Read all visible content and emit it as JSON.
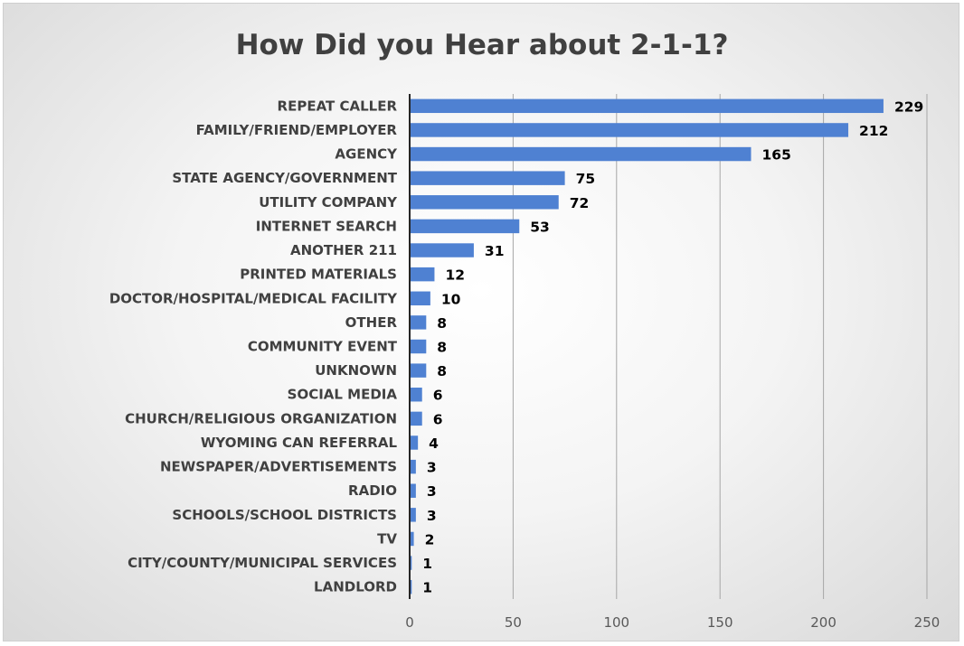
{
  "chart_data": {
    "type": "bar",
    "orientation": "horizontal",
    "title": "How Did you Hear about 2-1-1?",
    "xlabel": "",
    "ylabel": "",
    "categories": [
      "REPEAT CALLER",
      "FAMILY/FRIEND/EMPLOYER",
      "AGENCY",
      "STATE AGENCY/GOVERNMENT",
      "UTILITY COMPANY",
      "INTERNET SEARCH",
      "ANOTHER 211",
      "PRINTED MATERIALS",
      "DOCTOR/HOSPITAL/MEDICAL FACILITY",
      "OTHER",
      "COMMUNITY EVENT",
      "UNKNOWN",
      "SOCIAL MEDIA",
      "CHURCH/RELIGIOUS ORGANIZATION",
      "WYOMING CAN REFERRAL",
      "NEWSPAPER/ADVERTISEMENTS",
      "RADIO",
      "SCHOOLS/SCHOOL DISTRICTS",
      "TV",
      "CITY/COUNTY/MUNICIPAL SERVICES",
      "LANDLORD"
    ],
    "values": [
      229,
      212,
      165,
      75,
      72,
      53,
      31,
      12,
      10,
      8,
      8,
      8,
      6,
      6,
      4,
      3,
      3,
      3,
      2,
      1,
      1
    ],
    "xlim": [
      0,
      250
    ],
    "xticks": [
      0,
      50,
      100,
      150,
      200,
      250
    ],
    "grid": "vertical",
    "legend": "none",
    "bar_color": "#4f81d2"
  }
}
